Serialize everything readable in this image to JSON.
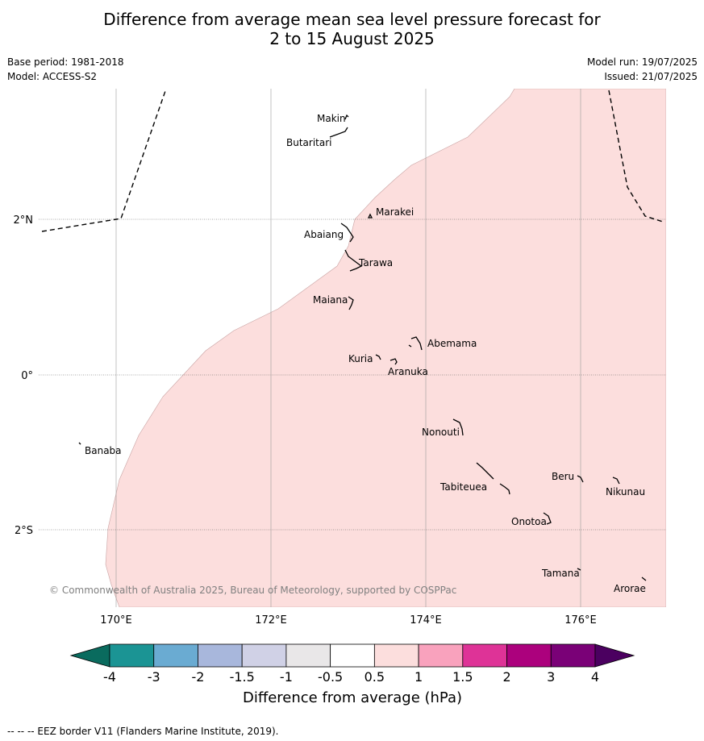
{
  "title_line1": "Difference from average mean sea level pressure forecast for",
  "title_line2": "2 to 15 August 2025",
  "meta": {
    "base_period": "Base period: 1981-2018",
    "model": "Model: ACCESS-S2",
    "model_run": "Model run: 19/07/2025",
    "issued": "Issued: 21/07/2025"
  },
  "map": {
    "lat_labels": [
      "2°N",
      "0°",
      "2°S"
    ],
    "lon_labels": [
      "170°E",
      "172°E",
      "174°E",
      "176°E"
    ],
    "fill_color": "#fcdedd",
    "copyright": "© Commonwealth of Australia 2025, Bureau of Meteorology, supported by COSPPac",
    "islands": [
      "Makin",
      "Butaritari",
      "Marakei",
      "Abaiang",
      "Tarawa",
      "Maiana",
      "Abemama",
      "Kuria",
      "Aranuka",
      "Nonouti",
      "Banaba",
      "Beru",
      "Tabiteuea",
      "Nikunau",
      "Onotoa",
      "Tamana",
      "Arorae"
    ]
  },
  "colorbar": {
    "label": "Difference from average (hPa)",
    "ticks": [
      "-4",
      "-3",
      "-2",
      "-1.5",
      "-1",
      "-0.5",
      "0.5",
      "1",
      "1.5",
      "2",
      "3",
      "4"
    ],
    "colors": [
      "#1b9494",
      "#6aabd2",
      "#a8b7dc",
      "#d0d1e6",
      "#e9e7e8",
      "#ffffff",
      "#fcdedd",
      "#f9a2bd",
      "#de3397",
      "#ac017d",
      "#7a0177"
    ],
    "extend_low_color": "#0a6b5e",
    "extend_high_color": "#4b0060"
  },
  "footer": "--  --  -- EEZ border V11 (Flanders Marine Institute, 2019)."
}
